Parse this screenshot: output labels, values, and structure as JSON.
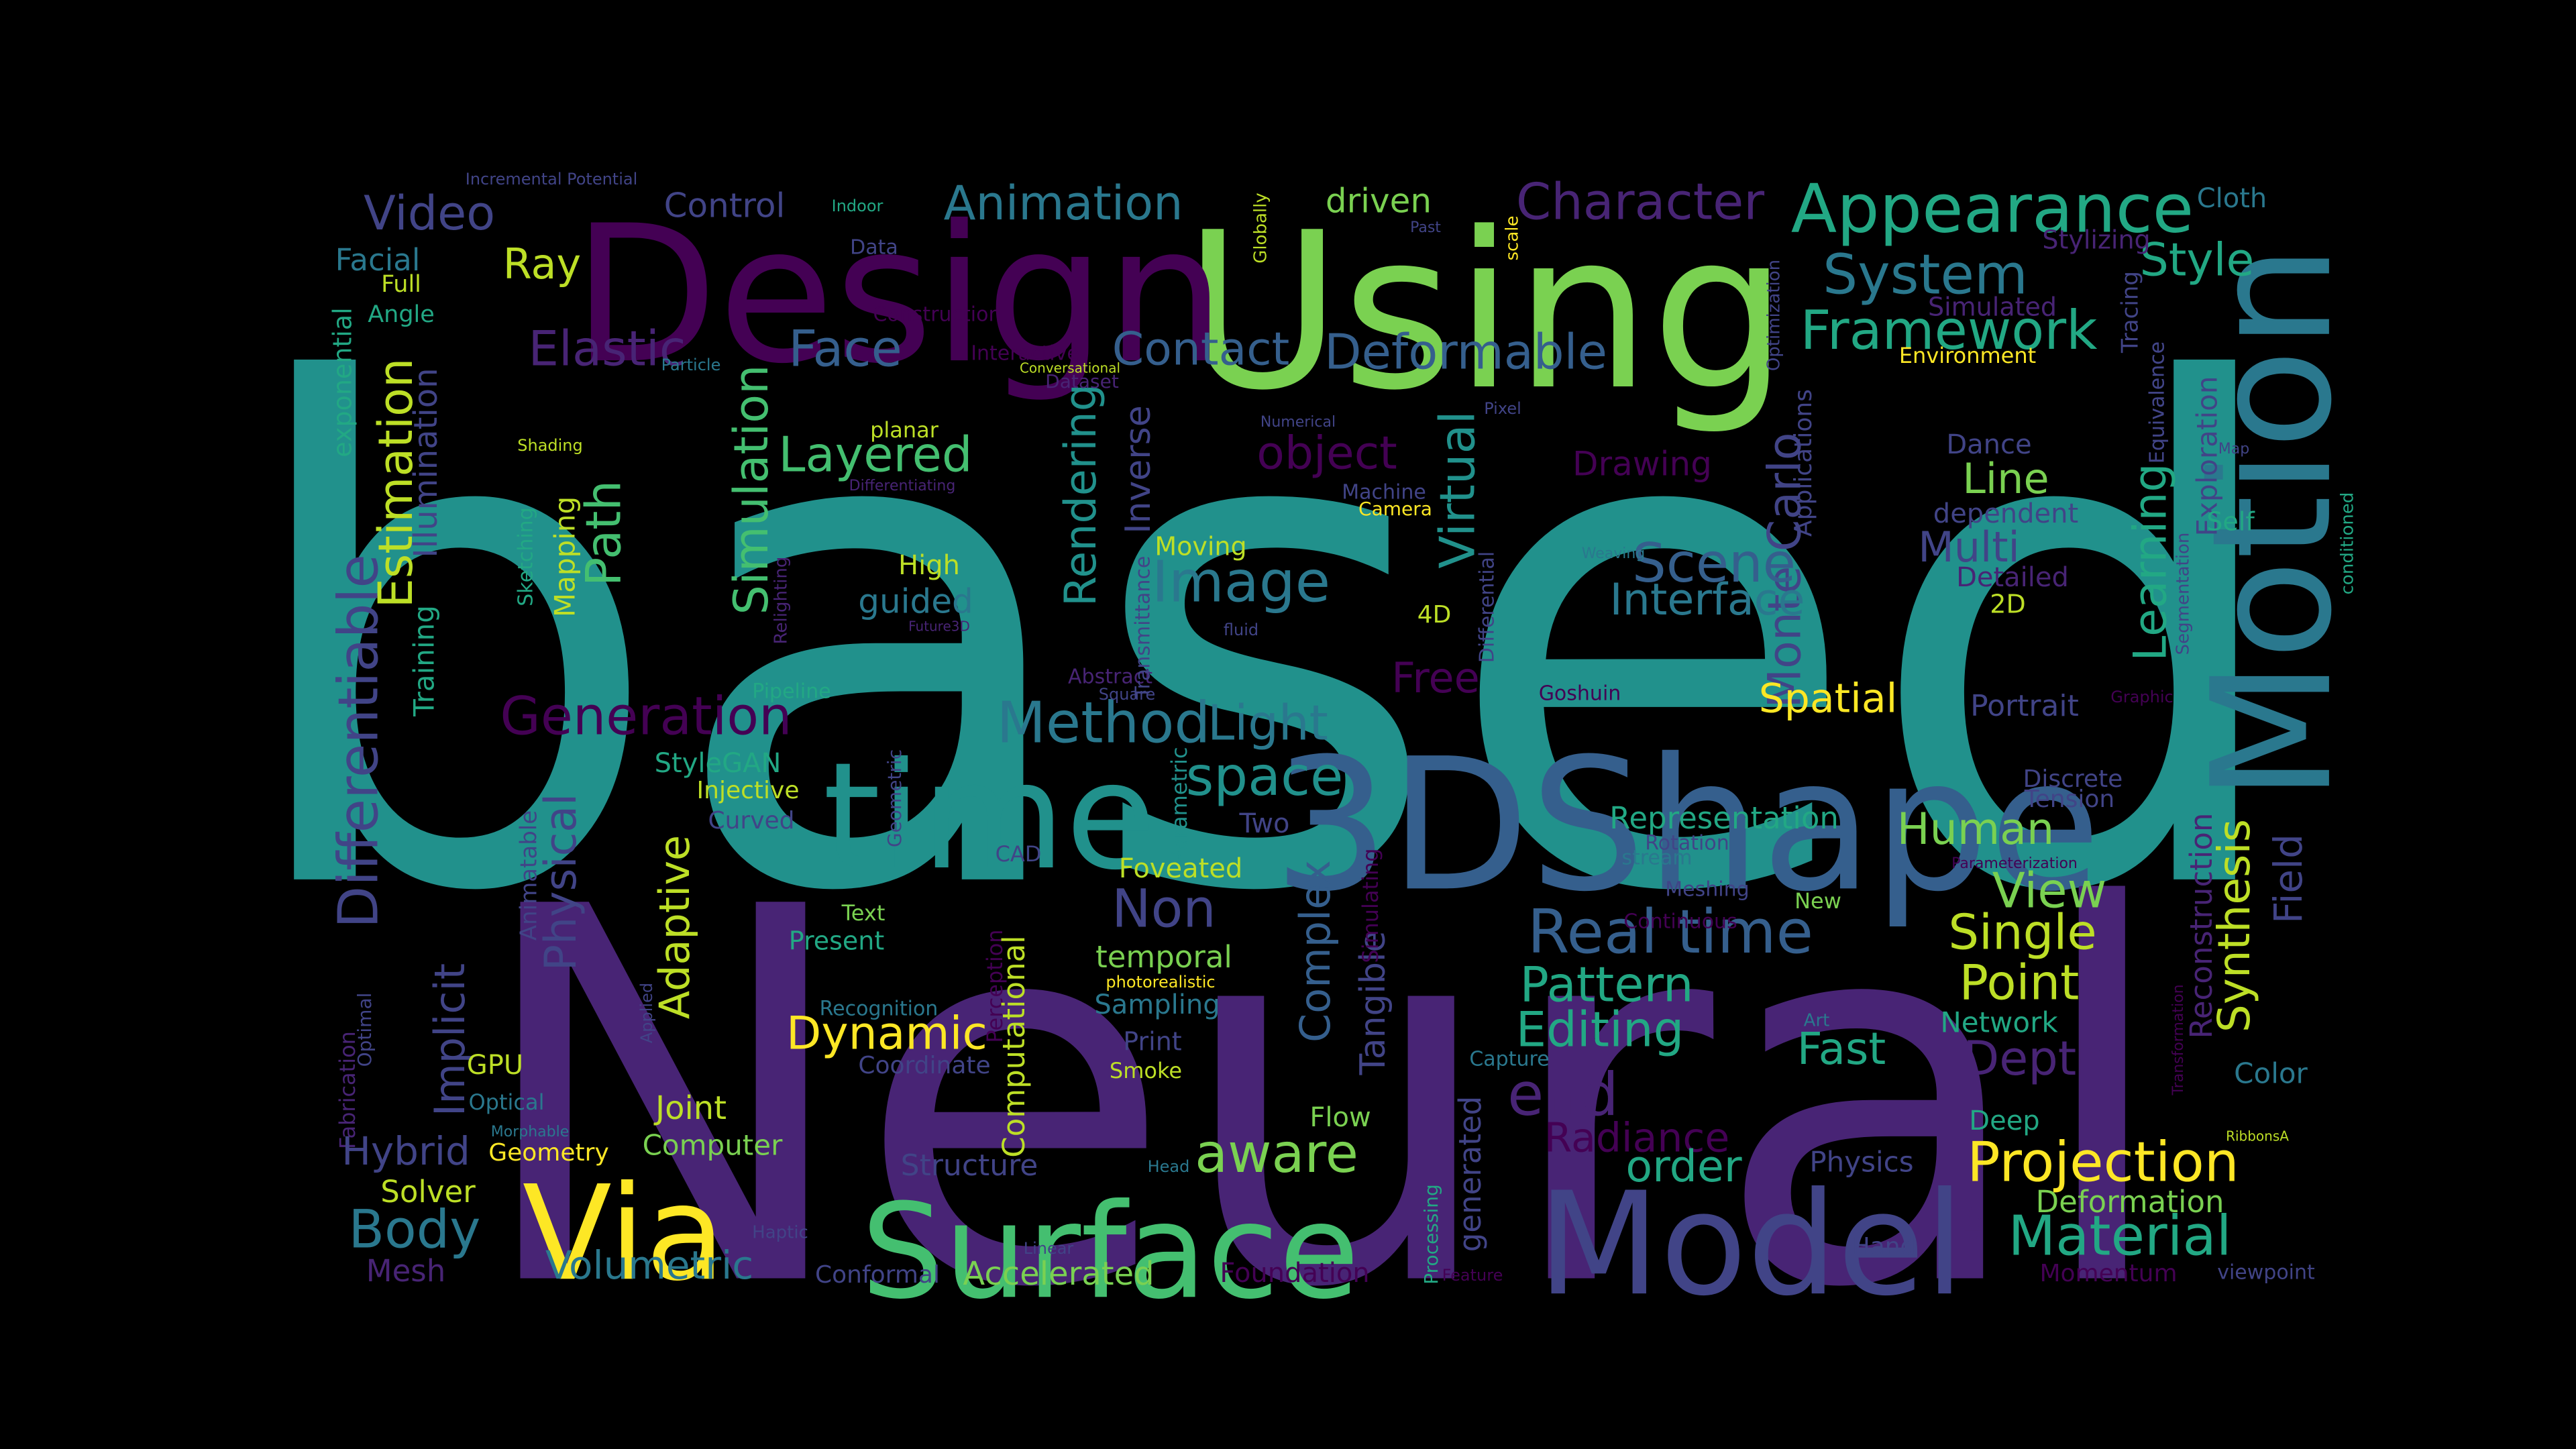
{
  "background": "#000000",
  "palette": {
    "darkPurple": "#440154",
    "purple": "#482475",
    "indigo": "#414487",
    "blue": "#355f8d",
    "steel": "#2a788e",
    "teal": "#21918c",
    "seaGreen": "#22a884",
    "green": "#44bf70",
    "lime": "#7ad151",
    "yellowGreen": "#bddf26",
    "yellow": "#fde725"
  },
  "words": [
    "based",
    "Neural",
    "3DShape",
    "Using",
    "Design",
    "time",
    "Motion",
    "Model",
    "Surface",
    "Via",
    "Appearance",
    "Character",
    "Animation",
    "Video",
    "Control",
    "driven",
    "System",
    "Style",
    "Cloth",
    "Facial",
    "Full",
    "Ray",
    "Elastic",
    "Face",
    "Contact",
    "Deformable",
    "Framework",
    "Stylizing",
    "Simulated",
    "Environment",
    "Angle",
    "exponential",
    "Estimation",
    "Illumination",
    "Training",
    "Differentiable",
    "Path",
    "Simulation",
    "Layered",
    "Rendering",
    "Inverse",
    "object",
    "Virtual",
    "Monte Carlo",
    "Learning",
    "Exploration",
    "Tracing",
    "Equivalence",
    "Dance",
    "Line",
    "dependent",
    "Multi",
    "Self",
    "Scene",
    "Interface",
    "Image",
    "Detailed",
    "2D",
    "High",
    "guided",
    "Mapping",
    "Sketching",
    "Generation",
    "Method",
    "Light",
    "space",
    "Free",
    "Spatial",
    "Portrait",
    "Graphic",
    "Goshuin",
    "Pipeline",
    "Relighting",
    "Abstract",
    "Transmittance",
    "Segmentation",
    "conditioned",
    "Physical",
    "Implicit",
    "Adaptive",
    "StyleGAN",
    "Injective",
    "Curved",
    "Geometric",
    "Parametric",
    "Two",
    "Representation",
    "Human",
    "Discrete",
    "Tension",
    "Rotation",
    "stream",
    "Reconstruction",
    "Synthesis",
    "Field",
    "Foveated",
    "Non",
    "Real time",
    "View",
    "Single",
    "Complex",
    "Tangible",
    "Simulating",
    "Pattern",
    "Point",
    "Editing",
    "Fast",
    "Network",
    "Depth",
    "Meshing",
    "New",
    "Continuous",
    "Present",
    "Text",
    "Perception",
    "Computational",
    "Recognition",
    "temporal",
    "photorealistic",
    "Sampling",
    "Dynamic",
    "Print",
    "Smoke",
    "Coordinate",
    "Capture",
    "end",
    "Flow",
    "generated",
    "Radiance",
    "Color",
    "Deep",
    "Joint",
    "Computer",
    "Optical",
    "GPU",
    "Fabrication",
    "Optimal",
    "Applied",
    "Hybrid",
    "Geometry",
    "Structure",
    "aware",
    "order",
    "Projection",
    "Physics",
    "Deformation",
    "Body",
    "Solver",
    "Material",
    "Volumetric",
    "Mesh",
    "Conformal",
    "Accelerated",
    "Foundation",
    "Hand",
    "Blur",
    "Momentum",
    "viewpoint",
    "Processing",
    "Feature",
    "Haptic",
    "Linear",
    "Head",
    "Art",
    "Transformation",
    "RibbonsA",
    "Morphable",
    "Animatable",
    "CAD",
    "Square",
    "Dataset",
    "Future3D",
    "fluid",
    "Weaving",
    "Camera",
    "Machine",
    "Numerical",
    "Pixel",
    "Map",
    "Optimization",
    "Applications",
    "Equivalence",
    "Globally",
    "scale",
    "Past",
    "Indoor",
    "Data",
    "Construction",
    "Interactive",
    "Conversational",
    "Particle",
    "Shading",
    "Differentiating",
    "planar",
    "Moving",
    "4D",
    "Differential",
    "Incremental Potential",
    "Parameterization",
    "Drawing"
  ]
}
